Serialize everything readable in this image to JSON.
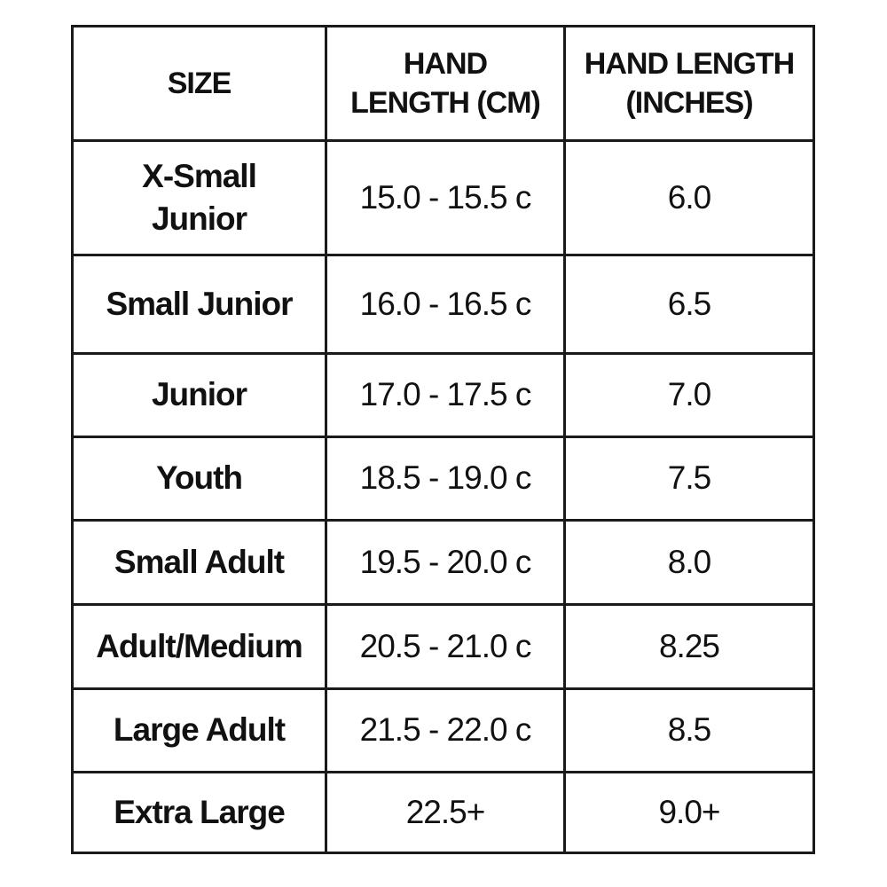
{
  "table": {
    "header": [
      "SIZE",
      "HAND\nLENGTH (CM)",
      "HAND LENGTH\n(INCHES)"
    ],
    "rows": [
      [
        "X-Small\nJunior",
        "15.0 - 15.5 c",
        "6.0"
      ],
      [
        "Small Junior",
        "16.0 - 16.5 c",
        "6.5"
      ],
      [
        "Junior",
        "17.0 - 17.5 c",
        "7.0"
      ],
      [
        "Youth",
        "18.5 - 19.0 c",
        "7.5"
      ],
      [
        "Small Adult",
        "19.5 - 20.0 c",
        "8.0"
      ],
      [
        "Adult/Medium",
        "20.5 - 21.0 c",
        "8.25"
      ],
      [
        "Large Adult",
        "21.5 - 22.0 c",
        "8.5"
      ],
      [
        "Extra Large",
        "22.5+",
        "9.0+"
      ]
    ]
  }
}
